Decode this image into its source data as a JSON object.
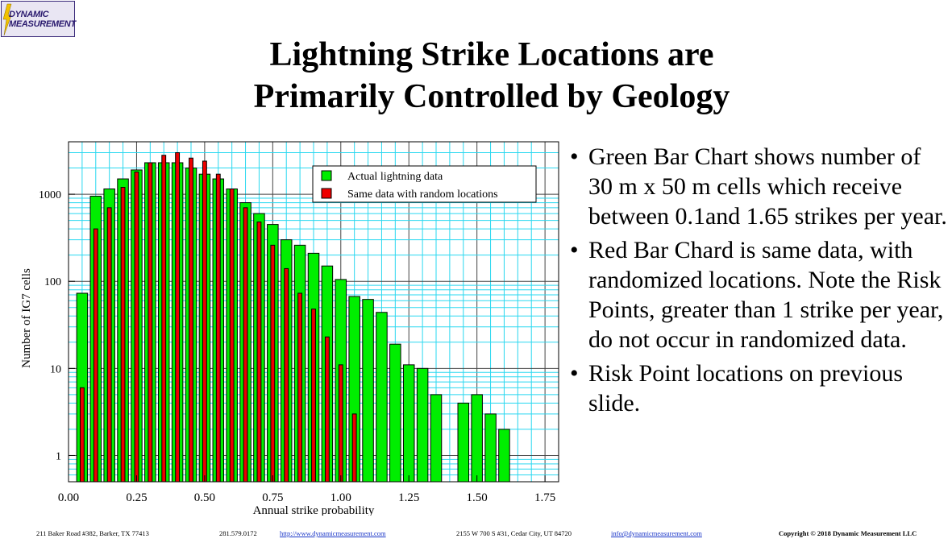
{
  "logo": {
    "line1": "DYNAMIC",
    "line2": "MEASUREMENT"
  },
  "title": {
    "line1": "Lightning Strike Locations are",
    "line2": "Primarily Controlled by Geology"
  },
  "bullets": [
    "Green Bar Chart shows number of 30 m x 50 m cells which receive  between 0.1and 1.65 strikes per year.",
    "Red Bar Chard is same data, with randomized locations. Note the Risk Points, greater than 1 strike per year, do not occur in randomized data.",
    "Risk Point locations on previous slide."
  ],
  "bullet_glyph": "•",
  "footer": {
    "address1": "211 Baker Road #382, Barker, TX 77413",
    "phone": "281.579.0172",
    "url": "http://www.dynamicmeasurement.com",
    "address2": "2155 W 700 S #31, Cedar City, UT 84720",
    "email": "info@dynamicmeasurement.com",
    "copyright": "Copyright © 2018  Dynamic Measurement  LLC"
  },
  "chart_data": {
    "type": "bar",
    "title": "",
    "xlabel": "Annual strike probability",
    "ylabel": "Number of IG7 cells",
    "y_scale": "log",
    "xlim": [
      0,
      1.8
    ],
    "ylim": [
      0.5,
      4000
    ],
    "x_ticks": [
      "0.00",
      "0.25",
      "0.50",
      "0.75",
      "1.00",
      "1.25",
      "1.50",
      "1.75"
    ],
    "y_ticks": [
      "1",
      "10",
      "100",
      "1000"
    ],
    "grid": true,
    "legend_position": "top-right",
    "bin_width": 0.05,
    "x": [
      0.05,
      0.1,
      0.15,
      0.2,
      0.25,
      0.3,
      0.35,
      0.4,
      0.45,
      0.5,
      0.55,
      0.6,
      0.65,
      0.7,
      0.75,
      0.8,
      0.85,
      0.9,
      0.95,
      1.0,
      1.05,
      1.1,
      1.15,
      1.2,
      1.25,
      1.3,
      1.35,
      1.4,
      1.45,
      1.5,
      1.55,
      1.6
    ],
    "series": [
      {
        "name": "Actual lightning data",
        "color": "#00ee00",
        "values": [
          73,
          950,
          1150,
          1500,
          1900,
          2300,
          2300,
          2300,
          2000,
          1700,
          1500,
          1150,
          800,
          600,
          450,
          300,
          260,
          210,
          150,
          105,
          67,
          62,
          44,
          19,
          11,
          10,
          5,
          null,
          4,
          5,
          3,
          2
        ]
      },
      {
        "name": "Same data with random locations",
        "color": "#ee0000",
        "values": [
          6,
          400,
          700,
          1200,
          1800,
          2300,
          2800,
          3000,
          2600,
          2400,
          1700,
          1150,
          700,
          480,
          260,
          140,
          73,
          48,
          23,
          11,
          3,
          null,
          null,
          null,
          null,
          null,
          null,
          null,
          null,
          null,
          null,
          null
        ]
      }
    ]
  }
}
